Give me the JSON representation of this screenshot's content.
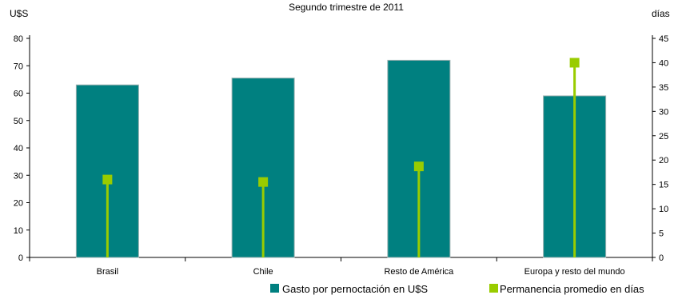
{
  "chart_data": {
    "type": "bar",
    "title": "Segundo trimestre de 2011",
    "y_unit_left": "U$S",
    "y_unit_right": "días",
    "categories": [
      "Brasil",
      "Chile",
      "Resto de América",
      "Europa y resto del mundo"
    ],
    "series": [
      {
        "name": "Gasto por pernoctación en U$S",
        "axis": "left",
        "mark": "bar",
        "color": "#008080",
        "values": [
          63,
          65.5,
          72,
          59
        ]
      },
      {
        "name": "Permanencia promedio en días",
        "axis": "right",
        "mark": "stem-marker",
        "color": "#99cc00",
        "values": [
          16,
          15.5,
          18.7,
          40
        ]
      }
    ],
    "y_left": {
      "min": 0,
      "max": 80,
      "ticks": [
        0,
        10,
        20,
        30,
        40,
        50,
        60,
        70,
        80
      ]
    },
    "y_right": {
      "min": 0,
      "max": 45,
      "ticks": [
        0,
        5,
        10,
        15,
        20,
        25,
        30,
        35,
        40,
        45
      ]
    },
    "grid": false,
    "legend_position": "bottom-right"
  }
}
